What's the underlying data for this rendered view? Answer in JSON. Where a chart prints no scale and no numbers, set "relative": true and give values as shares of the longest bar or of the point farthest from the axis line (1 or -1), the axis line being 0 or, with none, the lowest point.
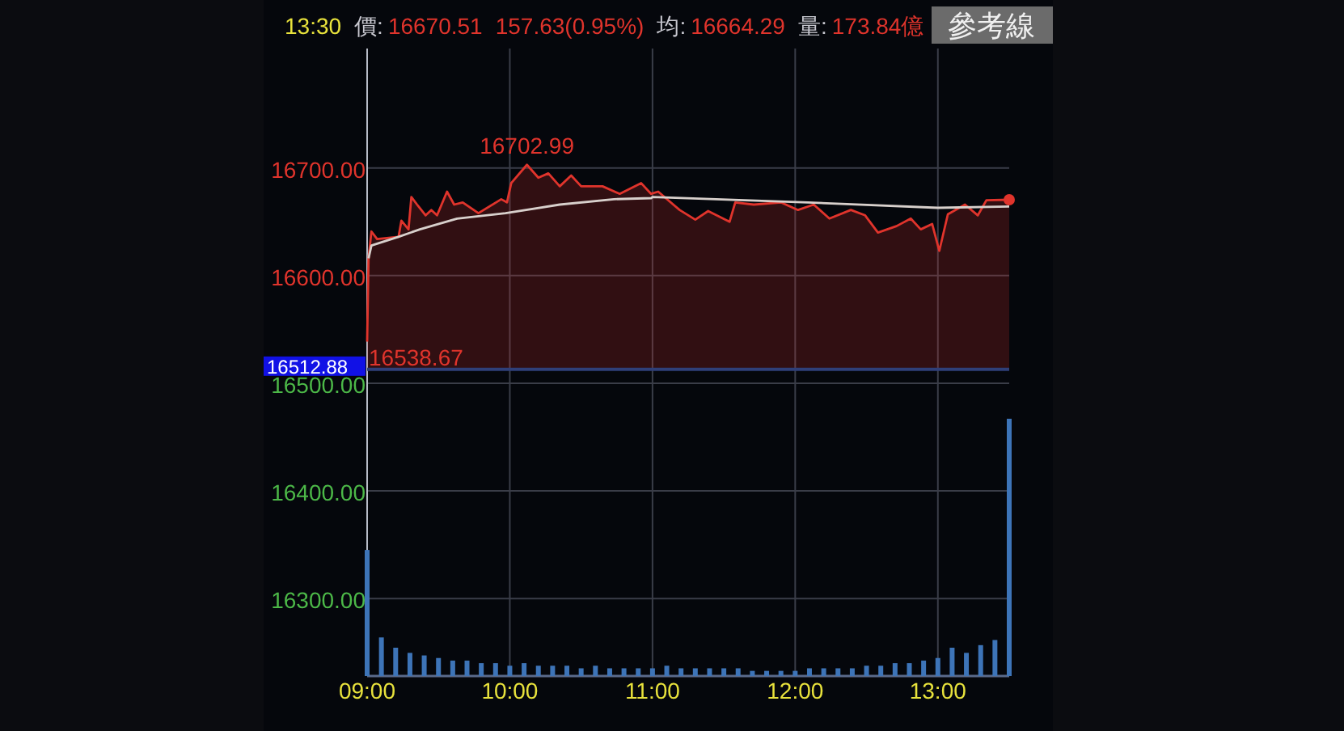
{
  "chart_data": [
    {
      "type": "area",
      "xlim": [
        9,
        13.5
      ],
      "ylim": [
        16228,
        16811
      ],
      "xticks": [
        {
          "value": 9,
          "label": "09:00"
        },
        {
          "value": 10,
          "label": "10:00"
        },
        {
          "value": 11,
          "label": "11:00"
        },
        {
          "value": 12,
          "label": "12:00"
        },
        {
          "value": 13,
          "label": "13:00"
        }
      ],
      "yticks": [
        {
          "value": 16300,
          "label": "16300.00"
        },
        {
          "value": 16400,
          "label": "16400.00"
        },
        {
          "value": 16500,
          "label": "16500.00"
        },
        {
          "value": 16600,
          "label": "16600.00"
        },
        {
          "value": 16700,
          "label": "16700.00"
        }
      ],
      "grid": true,
      "ref_lines": [
        {
          "axis": "y",
          "value": 16512.88,
          "label": "16512.88",
          "color": "#2f3f78"
        }
      ],
      "annotations": [
        "13:30",
        "價:",
        "16670.51",
        "157.63(0.95%)",
        "均:",
        "16664.29",
        "量:",
        "173.84億",
        "參考線",
        {
          "text": "16702.99",
          "x": 10.12,
          "y": 16702.99
        },
        {
          "text": "16538.67",
          "x": 9.0,
          "y": 16538.67
        }
      ],
      "series": [
        {
          "color": "#e0342c",
          "x": [
            9.0,
            9.01,
            9.03,
            9.07,
            9.22,
            9.24,
            9.29,
            9.31,
            9.35,
            9.41,
            9.45,
            9.49,
            9.56,
            9.61,
            9.67,
            9.78,
            9.94,
            9.98,
            10.01,
            10.12,
            10.2,
            10.27,
            10.35,
            10.43,
            10.5,
            10.65,
            10.77,
            10.92,
            10.99,
            11.04,
            11.19,
            11.3,
            11.39,
            11.54,
            11.58,
            11.71,
            11.9,
            12.02,
            12.13,
            12.24,
            12.39,
            12.49,
            12.58,
            12.71,
            12.81,
            12.88,
            12.96,
            13.01,
            13.07,
            13.19,
            13.28,
            13.34,
            13.5
          ],
          "values": [
            16538.67,
            16616,
            16641,
            16634,
            16636,
            16651,
            16643,
            16673,
            16666,
            16656,
            16661,
            16656,
            16678,
            16666,
            16668,
            16658,
            16671,
            16668,
            16686,
            16702.99,
            16691,
            16695,
            16683,
            16693,
            16683,
            16683,
            16676,
            16686,
            16676,
            16678,
            16661,
            16652,
            16660,
            16650,
            16668,
            16666,
            16668,
            16661,
            16666,
            16653,
            16661,
            16656,
            16640,
            16646,
            16653,
            16643,
            16648,
            16623,
            16657,
            16666,
            16656,
            16670,
            16670.51
          ]
        },
        {
          "type": "line",
          "color": "#d8d0cc",
          "x": [
            9.01,
            9.03,
            9.22,
            9.37,
            9.63,
            9.97,
            10.35,
            10.73,
            10.99,
            11.0,
            12.09,
            13.0,
            13.5
          ],
          "values": [
            16616,
            16628,
            16636,
            16643,
            16653,
            16658,
            16666,
            16671,
            16672,
            16673,
            16668,
            16663,
            16664.29
          ]
        }
      ]
    },
    {
      "type": "bar",
      "relative": true,
      "xlim": [
        9,
        13.5
      ],
      "series": [
        {
          "color": "#3d74b8",
          "x": [
            9.0,
            9.1,
            9.2,
            9.3,
            9.4,
            9.5,
            9.6,
            9.7,
            9.8,
            9.9,
            10.0,
            10.1,
            10.2,
            10.3,
            10.4,
            10.5,
            10.6,
            10.7,
            10.8,
            10.9,
            11.0,
            11.1,
            11.2,
            11.3,
            11.4,
            11.5,
            11.6,
            11.7,
            11.8,
            11.9,
            12.0,
            12.1,
            12.2,
            12.3,
            12.4,
            12.5,
            12.6,
            12.7,
            12.8,
            12.9,
            13.0,
            13.1,
            13.2,
            13.3,
            13.4,
            13.5
          ],
          "values": [
            0.49,
            0.15,
            0.11,
            0.09,
            0.08,
            0.07,
            0.06,
            0.06,
            0.05,
            0.05,
            0.04,
            0.05,
            0.04,
            0.04,
            0.04,
            0.03,
            0.04,
            0.03,
            0.03,
            0.03,
            0.03,
            0.04,
            0.03,
            0.03,
            0.03,
            0.03,
            0.03,
            0.02,
            0.02,
            0.02,
            0.02,
            0.03,
            0.03,
            0.03,
            0.03,
            0.04,
            0.04,
            0.05,
            0.05,
            0.06,
            0.07,
            0.11,
            0.09,
            0.12,
            0.14,
            1
          ]
        }
      ]
    }
  ]
}
